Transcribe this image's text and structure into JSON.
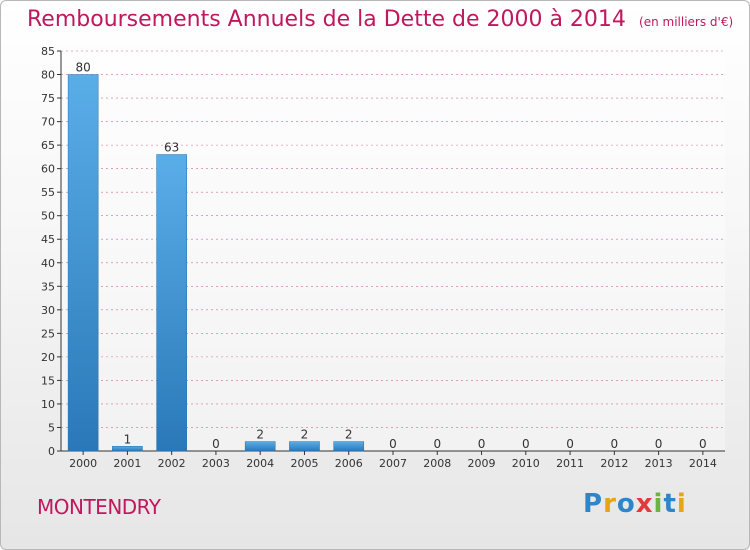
{
  "title": "Remboursements Annuels de la Dette de 2000 à 2014",
  "unit_note": "(en milliers d'€)",
  "city": "MONTENDRY",
  "logo": {
    "text": "Proxiti",
    "letters": [
      {
        "ch": "P",
        "color": "#2e86c9"
      },
      {
        "ch": "r",
        "color": "#e8a317"
      },
      {
        "ch": "o",
        "color": "#2e86c9"
      },
      {
        "ch": "x",
        "color": "#e23a3a"
      },
      {
        "ch": "i",
        "color": "#6db33f"
      },
      {
        "ch": "t",
        "color": "#2e86c9"
      },
      {
        "ch": "i",
        "color": "#e8a317"
      }
    ]
  },
  "colors": {
    "title": "#c0185e",
    "bar_light": "#5aaee8",
    "bar_dark": "#2a78b8",
    "grid": "#d06aa0",
    "axis": "#333333"
  },
  "chart_data": {
    "type": "bar",
    "categories": [
      "2000",
      "2001",
      "2002",
      "2003",
      "2004",
      "2005",
      "2006",
      "2007",
      "2008",
      "2009",
      "2010",
      "2011",
      "2012",
      "2013",
      "2014"
    ],
    "values": [
      80,
      1,
      63,
      0,
      2,
      2,
      2,
      0,
      0,
      0,
      0,
      0,
      0,
      0,
      0
    ],
    "data_labels": [
      "80",
      "1",
      "63",
      "0",
      "2",
      "2",
      "2",
      "0",
      "0",
      "0",
      "0",
      "0",
      "0",
      "0",
      "0"
    ],
    "ylim": [
      0,
      85
    ],
    "yticks": [
      "0",
      "5",
      "10",
      "15",
      "20",
      "25",
      "30",
      "35",
      "40",
      "45",
      "50",
      "55",
      "60",
      "65",
      "70",
      "75",
      "80",
      "85"
    ],
    "grid": "horizontal dashed",
    "xlabel": "",
    "ylabel": ""
  }
}
